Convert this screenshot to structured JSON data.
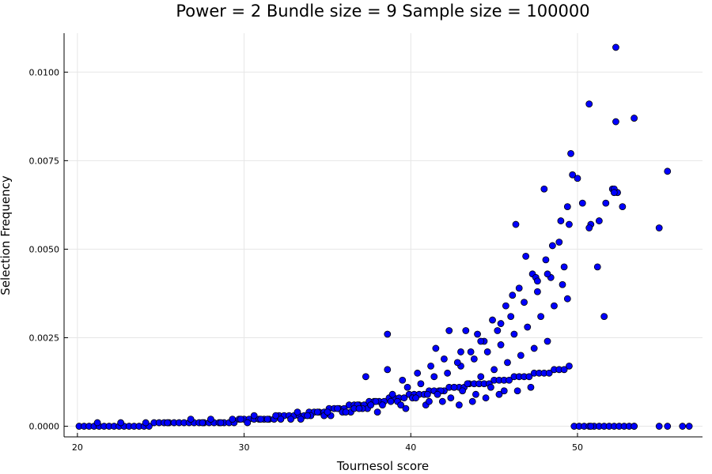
{
  "chart_data": {
    "type": "scatter",
    "title": "Power = 2 Bundle size = 9 Sample size = 100000",
    "xlabel": "Tournesol score",
    "ylabel": "Selection Frequency",
    "xlim": [
      19.2,
      57.5
    ],
    "ylim": [
      -0.0003,
      0.0111
    ],
    "xticks": [
      20,
      30,
      40,
      50
    ],
    "xtick_labels": [
      "20",
      "30",
      "40",
      "50"
    ],
    "yticks": [
      0.0,
      0.0025,
      0.005,
      0.0075,
      0.01
    ],
    "ytick_labels": [
      "0.0000",
      "0.0025",
      "0.0050",
      "0.0075",
      "0.0100"
    ],
    "grid": true,
    "legend": false,
    "marker_color": "#0000ff",
    "marker_edge_color": "#000000",
    "series": [
      {
        "x": [
          20.1,
          20.4,
          20.7,
          21.0,
          21.3,
          21.6,
          21.9,
          22.2,
          22.5,
          22.8,
          23.1,
          23.4,
          23.7,
          24.0,
          24.3,
          24.6,
          24.9,
          25.2,
          25.5,
          25.8,
          26.1,
          26.4,
          26.7,
          27.0,
          27.3,
          27.6,
          27.9,
          28.2,
          28.5,
          28.8,
          29.1,
          29.4,
          29.7,
          30.0,
          30.3,
          30.6,
          30.9,
          31.2,
          31.5,
          31.8,
          32.1,
          32.4,
          32.7,
          33.0,
          33.3,
          33.6,
          33.9,
          34.2,
          34.5,
          34.8,
          35.1,
          35.4,
          35.7,
          36.0,
          36.3,
          36.6,
          36.9,
          37.2,
          37.5,
          37.8,
          38.1,
          38.4,
          38.7,
          39.0,
          39.3,
          39.6,
          39.9,
          40.2,
          40.5,
          40.8,
          41.1,
          41.4,
          41.7,
          42.0,
          42.3,
          42.6,
          42.9,
          43.2,
          43.5,
          43.8,
          44.1,
          44.4,
          44.7,
          45.0,
          45.3,
          45.6,
          45.9,
          46.2,
          46.5,
          46.8,
          47.1,
          47.4,
          47.7,
          48.0,
          48.3,
          48.6,
          48.9,
          49.2,
          49.5,
          49.8,
          50.1,
          50.4,
          50.7,
          51.0,
          51.3,
          51.6,
          51.9,
          52.2,
          52.5,
          52.8,
          53.1,
          53.4,
          54.9,
          55.4,
          56.3,
          56.7,
          21.2,
          22.6,
          24.1,
          25.4,
          26.8,
          28.0,
          29.3,
          30.6,
          31.9,
          33.2,
          34.4,
          35.6,
          36.8,
          37.9,
          38.9,
          39.8,
          40.6,
          41.4,
          42.2,
          43.0,
          43.8,
          44.6,
          45.4,
          46.2,
          47.0,
          47.8,
          48.6,
          49.4,
          30.2,
          31.4,
          32.8,
          34.0,
          35.2,
          36.4,
          37.4,
          38.3,
          39.2,
          40.1,
          41.0,
          41.8,
          42.6,
          43.4,
          44.2,
          45.0,
          45.8,
          46.6,
          47.4,
          48.2,
          37.3,
          38.6,
          39.5,
          40.4,
          41.2,
          42.0,
          42.8,
          43.6,
          44.4,
          45.2,
          46.0,
          46.8,
          47.6,
          48.4,
          49.2,
          43.3,
          44.0,
          44.9,
          45.7,
          46.5,
          47.3,
          48.1,
          48.9,
          46.3,
          46.9,
          47.5,
          48.0,
          48.5,
          49.0,
          49.4,
          49.7,
          50.0,
          50.3,
          50.8,
          51.2,
          51.6,
          52.1,
          52.4,
          52.7,
          49.6,
          50.7,
          51.3,
          52.2,
          53.4,
          55.4,
          49.5,
          52.3,
          52.3,
          50.7,
          52.2,
          51.7,
          54.9,
          53.4,
          50.8,
          38.6,
          42.3,
          41.5,
          43.0,
          44.2,
          45.4,
          46.1,
          47.6,
          48.2,
          49.1,
          33.4,
          34.8,
          35.9,
          36.6,
          37.1,
          38.0,
          39.7,
          40.9,
          41.9,
          42.9,
          43.7,
          44.5,
          45.3,
          46.4,
          47.2,
          27.5,
          28.6,
          29.8,
          31.0,
          32.2,
          33.8,
          35.0,
          36.1,
          36.9,
          37.6,
          38.8,
          39.4,
          40.3,
          41.1,
          41.6,
          42.4,
          43.1,
          43.9,
          44.8,
          45.6
        ],
        "y": [
          0.0,
          0.0,
          0.0,
          0.0,
          0.0,
          0.0,
          0.0,
          0.0,
          0.0,
          0.0,
          0.0,
          0.0,
          0.0,
          0.0,
          0.0,
          0.0001,
          0.0001,
          0.0001,
          0.0001,
          0.0001,
          0.0001,
          0.0001,
          0.0001,
          0.0001,
          0.0001,
          0.0001,
          0.0001,
          0.0001,
          0.0001,
          0.0001,
          0.0001,
          0.0001,
          0.0002,
          0.0002,
          0.0002,
          0.0002,
          0.0002,
          0.0002,
          0.0002,
          0.0002,
          0.0003,
          0.0003,
          0.0003,
          0.0003,
          0.0003,
          0.0003,
          0.0004,
          0.0004,
          0.0004,
          0.0004,
          0.0005,
          0.0005,
          0.0005,
          0.0005,
          0.0006,
          0.0006,
          0.0006,
          0.0006,
          0.0007,
          0.0007,
          0.0007,
          0.0007,
          0.0008,
          0.0008,
          0.0008,
          0.0008,
          0.0009,
          0.0009,
          0.0009,
          0.0009,
          0.001,
          0.001,
          0.001,
          0.001,
          0.0011,
          0.0011,
          0.0011,
          0.0011,
          0.0012,
          0.0012,
          0.0012,
          0.0012,
          0.0012,
          0.0013,
          0.0013,
          0.0013,
          0.0013,
          0.0014,
          0.0014,
          0.0014,
          0.0014,
          0.0015,
          0.0015,
          0.0015,
          0.0015,
          0.0016,
          0.0016,
          0.0016,
          0.0017,
          0.0,
          0.0,
          0.0,
          0.0,
          0.0,
          0.0,
          0.0,
          0.0,
          0.0,
          0.0,
          0.0,
          0.0,
          0.0,
          0.0,
          0.0,
          0.0,
          0.0,
          0.0001,
          0.0001,
          0.0001,
          0.0001,
          0.0002,
          0.0002,
          0.0002,
          0.0003,
          0.0003,
          0.0004,
          0.0004,
          0.0005,
          0.0006,
          0.0007,
          0.0009,
          0.0011,
          0.0012,
          0.0014,
          0.0015,
          0.0017,
          0.0019,
          0.0021,
          0.0023,
          0.0026,
          0.0028,
          0.0031,
          0.0034,
          0.0036,
          0.0001,
          0.0002,
          0.0002,
          0.0003,
          0.0003,
          0.0004,
          0.0005,
          0.0006,
          0.0007,
          0.0008,
          0.0009,
          0.001,
          0.0011,
          0.0012,
          0.0014,
          0.0016,
          0.0018,
          0.002,
          0.0022,
          0.0024,
          0.0014,
          0.0016,
          0.0013,
          0.0015,
          0.0017,
          0.0019,
          0.0018,
          0.0021,
          0.0024,
          0.0027,
          0.0031,
          0.0035,
          0.0038,
          0.0042,
          0.0045,
          0.0027,
          0.0026,
          0.003,
          0.0034,
          0.0039,
          0.0043,
          0.0047,
          0.0052,
          0.0057,
          0.0048,
          0.0042,
          0.0067,
          0.0051,
          0.0058,
          0.0062,
          0.0071,
          0.007,
          0.0063,
          0.0057,
          0.0045,
          0.0031,
          0.0067,
          0.0066,
          0.0062,
          0.0077,
          0.0091,
          0.0058,
          0.0067,
          0.0087,
          0.0072,
          0.0057,
          0.0086,
          0.0107,
          0.0056,
          0.0066,
          0.0063,
          0.0056,
          0.0,
          0.0,
          0.0026,
          0.0027,
          0.0022,
          0.0021,
          0.0024,
          0.0029,
          0.0037,
          0.0041,
          0.0043,
          0.004,
          0.0002,
          0.0003,
          0.0004,
          0.0005,
          0.0005,
          0.0004,
          0.0005,
          0.0006,
          0.0007,
          0.0006,
          0.0007,
          0.0008,
          0.0009,
          0.001,
          0.0011,
          0.0001,
          0.0001,
          0.0002,
          0.0002,
          0.0002,
          0.0003,
          0.0004,
          0.0004,
          0.0005,
          0.0006,
          0.0007,
          0.0006,
          0.0008,
          0.0007,
          0.0009,
          0.0008,
          0.001,
          0.0009,
          0.0011,
          0.001
        ]
      }
    ]
  }
}
